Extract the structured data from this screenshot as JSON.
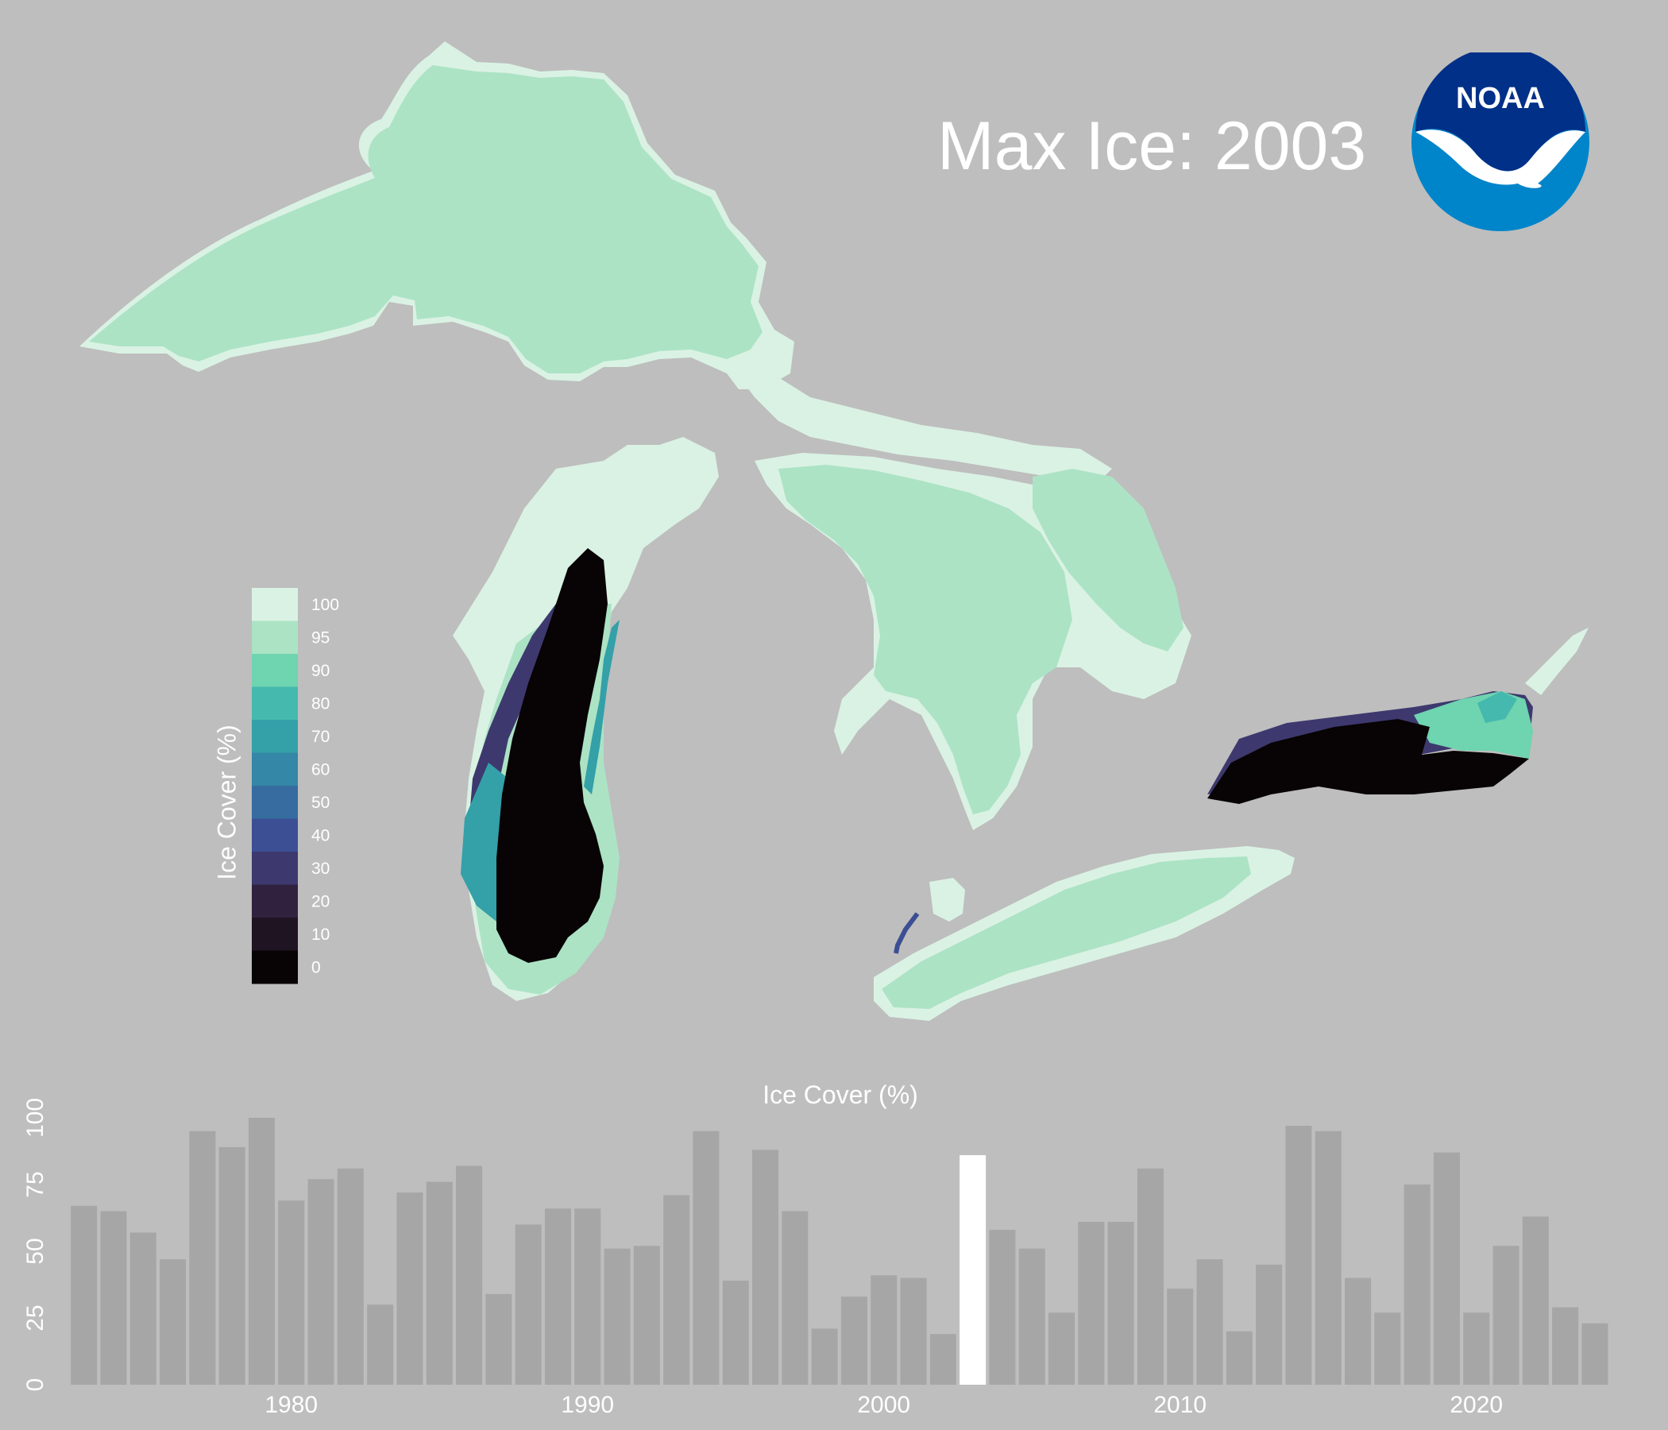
{
  "title": "Max Ice: 2003",
  "logo": {
    "text": "NOAA",
    "icon": "noaa-logo-icon",
    "outer_color": "#0085ca",
    "inner_color": "#003087"
  },
  "legend": {
    "title": "Ice Cover (%)",
    "labels": [
      "100",
      "95",
      "90",
      "80",
      "70",
      "60",
      "50",
      "40",
      "30",
      "20",
      "10",
      "0"
    ],
    "colors": [
      "#daf2e4",
      "#ace3c5",
      "#6fd4b0",
      "#45b9ae",
      "#34a0a8",
      "#3487a6",
      "#366ca0",
      "#3c4f95",
      "#3d396e",
      "#30223f",
      "#1f1422",
      "#080304"
    ]
  },
  "lakes": [
    {
      "name": "Superior",
      "ice_cover_color": "#ace3c5"
    },
    {
      "name": "Michigan",
      "ice_cover_color": "#080304"
    },
    {
      "name": "Huron",
      "ice_cover_color": "#ace3c5"
    },
    {
      "name": "Erie",
      "ice_cover_color": "#ace3c5"
    },
    {
      "name": "Ontario",
      "ice_cover_color": "#080304"
    }
  ],
  "chart_data": {
    "type": "bar",
    "title": "Ice Cover (%)",
    "x": [
      1973,
      1974,
      1975,
      1976,
      1977,
      1978,
      1979,
      1980,
      1981,
      1982,
      1983,
      1984,
      1985,
      1986,
      1987,
      1988,
      1989,
      1990,
      1991,
      1992,
      1993,
      1994,
      1995,
      1996,
      1997,
      1998,
      1999,
      2000,
      2001,
      2002,
      2003,
      2004,
      2005,
      2006,
      2007,
      2008,
      2009,
      2010,
      2011,
      2012,
      2013,
      2014,
      2015,
      2016,
      2017,
      2018,
      2019,
      2020,
      2021,
      2022,
      2023,
      2024
    ],
    "values": [
      67,
      65,
      57,
      47,
      95,
      89,
      100,
      69,
      77,
      81,
      30,
      72,
      76,
      82,
      34,
      60,
      66,
      66,
      51,
      52,
      71,
      95,
      39,
      88,
      65,
      21,
      33,
      41,
      40,
      19,
      86,
      58,
      51,
      27,
      61,
      61,
      81,
      36,
      47,
      20,
      45,
      97,
      95,
      40,
      27,
      75,
      87,
      27,
      52,
      63,
      29,
      23
    ],
    "highlight_year": 2003,
    "bar_color": "#a6a6a6",
    "highlight_color": "#ffffff",
    "x_ticks": [
      1980,
      1990,
      2000,
      2010,
      2020
    ],
    "y_ticks": [
      0,
      25,
      50,
      75,
      100
    ],
    "ylim": [
      0,
      100
    ]
  }
}
